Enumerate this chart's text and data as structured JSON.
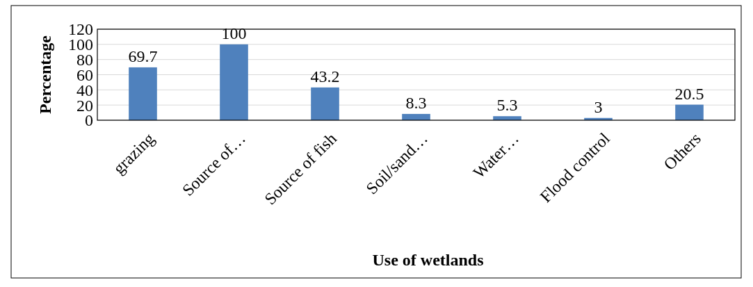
{
  "chart_data": {
    "type": "bar",
    "xlabel": "Use of wetlands",
    "ylabel": "Percentage",
    "categories": [
      "grazing",
      "Source of…",
      "Source of fish",
      "Soil/sand…",
      "Water…",
      "Flood control",
      "Others"
    ],
    "values": [
      69.7,
      100,
      43.2,
      8.3,
      5.3,
      3,
      20.5
    ],
    "color": "#4f81bd",
    "ylim": [
      0,
      120
    ],
    "yticks": [
      0,
      20,
      40,
      60,
      80,
      100,
      120
    ],
    "grid": "y",
    "data_labels": true
  }
}
